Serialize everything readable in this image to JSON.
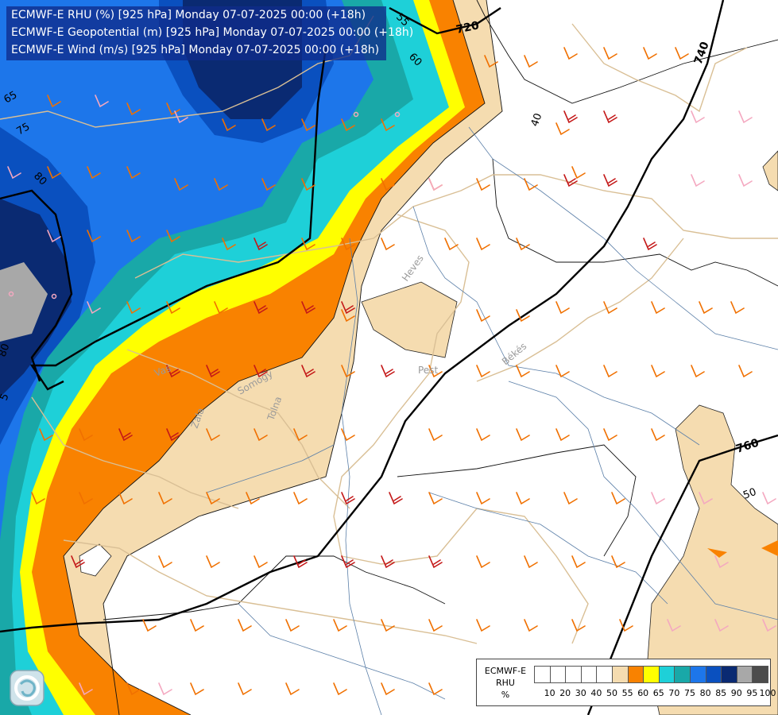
{
  "header": {
    "line1": "ECMWF-E RHU (%) [925 hPa] Monday 07-07-2025 00:00 (+18h)",
    "line2": "ECMWF-E Geopotential (m) [925 hPa] Monday 07-07-2025 00:00 (+18h)",
    "line3": "ECMWF-E Wind (m/s) [925 hPa] Monday 07-07-2025 00:00 (+18h)"
  },
  "map_labels": {
    "geopotential_contours": [
      "720",
      "740",
      "760"
    ],
    "rhu_contours": [
      "40",
      "50",
      "55",
      "60",
      "65",
      "75",
      "80",
      "80",
      "5"
    ],
    "places": [
      "Heves",
      "Pest",
      "Békés",
      "Vas",
      "Zala",
      "Somogy",
      "Tolna"
    ]
  },
  "legend": {
    "title_lines": [
      "ECMWF-E",
      "RHU",
      "%"
    ],
    "ticks": [
      "10",
      "20",
      "30",
      "40",
      "50",
      "55",
      "60",
      "65",
      "70",
      "75",
      "80",
      "85",
      "90",
      "95",
      "100"
    ],
    "colors": [
      "#ffffff",
      "#ffffff",
      "#ffffff",
      "#ffffff",
      "#ffffff",
      "#f5dcb0",
      "#f98200",
      "#ffff00",
      "#1ed0d8",
      "#19a8a8",
      "#1d76ea",
      "#0a50bf",
      "#0a2a72",
      "#a8a8a8",
      "#4c4c4c"
    ]
  },
  "colors": {
    "title_bg": "#102c8a",
    "border_lines": "#d9bf95",
    "rivers": "#5b7fa8",
    "wind_barbs": [
      "#f07000",
      "#c41818",
      "#f4a8c0"
    ],
    "contour_lines": "#000000"
  }
}
